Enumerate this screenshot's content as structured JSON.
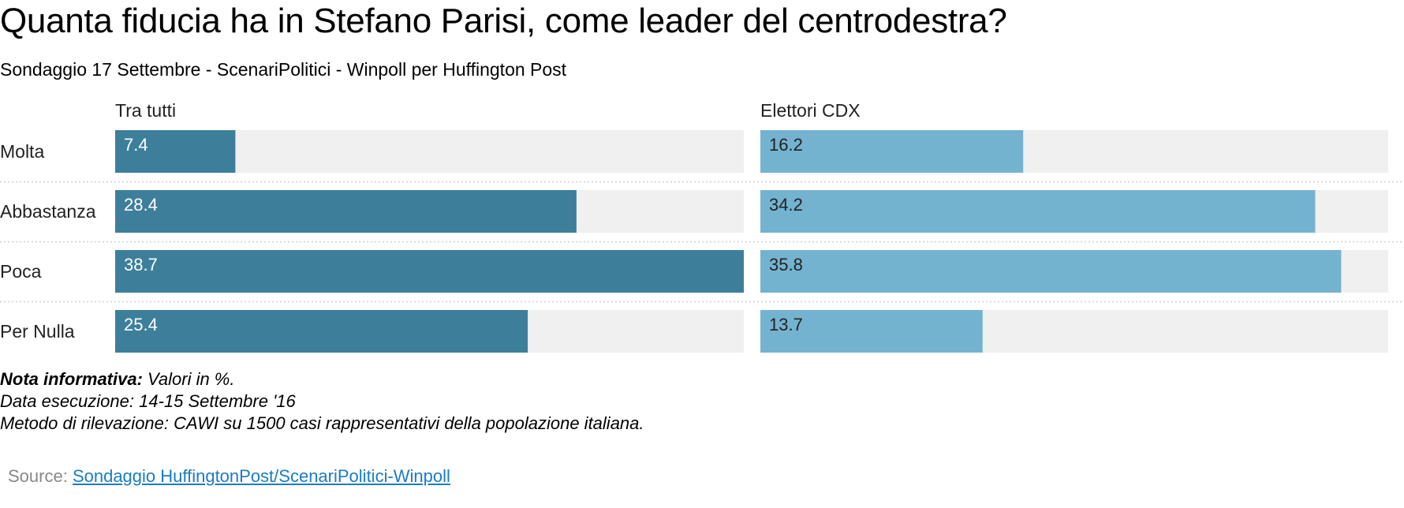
{
  "title": "Quanta fiducia ha in Stefano Parisi, come leader del centrodestra?",
  "subtitle": "Sondaggio 17 Settembre - ScenariPolitici - Winpoll per Huffington Post",
  "chart_data": {
    "type": "bar",
    "orientation": "horizontal",
    "categories": [
      "Molta",
      "Abbastanza",
      "Poca",
      "Per Nulla"
    ],
    "series": [
      {
        "name": "Tra tutti",
        "values": [
          7.4,
          28.4,
          38.7,
          25.4
        ],
        "color": "#3d7f9b",
        "label_color": "#ffffff"
      },
      {
        "name": "Elettori CDX",
        "values": [
          16.2,
          34.2,
          35.8,
          13.7
        ],
        "color": "#74b3d0",
        "label_color": "#222222"
      }
    ],
    "xlim": [
      0,
      38.7
    ],
    "track_color": "#f0f0f0",
    "grid": false,
    "legend": "panel headers"
  },
  "notes": {
    "label": "Nota informativa:",
    "value": " Valori in %.",
    "date": "Data esecuzione: 14-15 Settembre '16",
    "method": "Metodo di rilevazione: CAWI su 1500 casi rappresentativi della popolazione italiana."
  },
  "source": {
    "label": "Source: ",
    "link_text": "Sondaggio HuffingtonPost/ScenariPolitici-Winpoll"
  }
}
